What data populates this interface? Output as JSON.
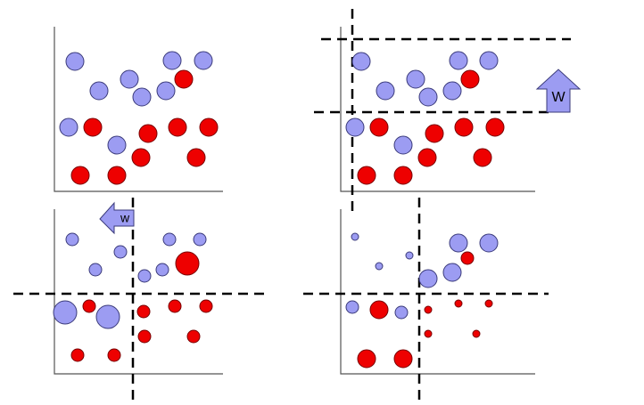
{
  "arrows": [
    {
      "label": "W"
    },
    {
      "label": "w"
    }
  ]
}
